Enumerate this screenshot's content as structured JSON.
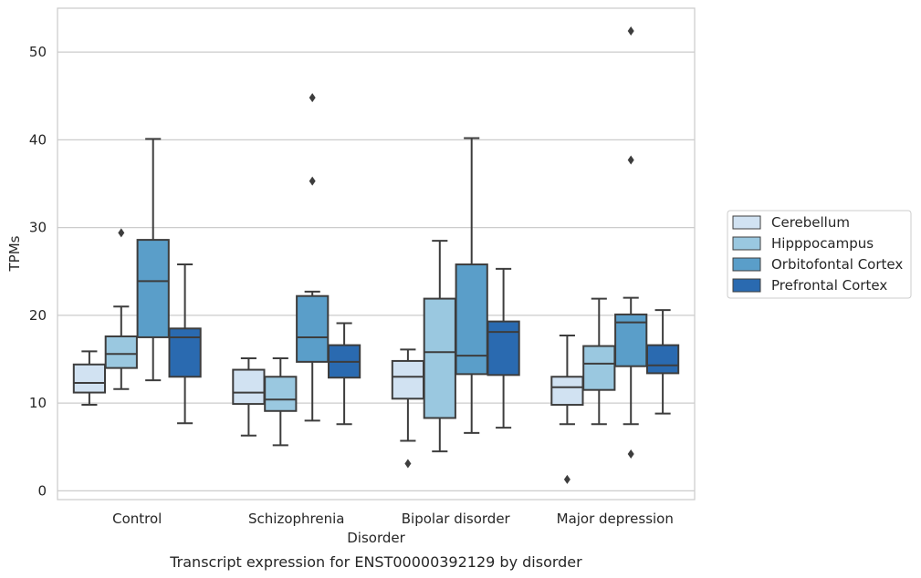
{
  "chart_data": {
    "type": "box",
    "title": "",
    "caption": "Transcript expression for ENST00000392129 by disorder",
    "xlabel": "Disorder",
    "ylabel": "TPMs",
    "ylim": [
      -1,
      55
    ],
    "yticks": [
      0,
      10,
      20,
      30,
      40,
      50
    ],
    "grid": "horizontal",
    "legend_position": "right",
    "categories": [
      "Control",
      "Schizophrenia",
      "Bipolar disorder",
      "Major depression"
    ],
    "series": [
      {
        "name": "Cerebellum",
        "color": "#d1e2f2",
        "boxes": [
          {
            "whisker_low": 9.8,
            "q1": 11.2,
            "median": 12.3,
            "q3": 14.4,
            "whisker_high": 15.9,
            "outliers": []
          },
          {
            "whisker_low": 6.3,
            "q1": 9.9,
            "median": 11.2,
            "q3": 13.8,
            "whisker_high": 15.1,
            "outliers": []
          },
          {
            "whisker_low": 5.7,
            "q1": 10.5,
            "median": 13.0,
            "q3": 14.8,
            "whisker_high": 16.1,
            "outliers": [
              3.1
            ]
          },
          {
            "whisker_low": 7.6,
            "q1": 9.8,
            "median": 11.8,
            "q3": 13.0,
            "whisker_high": 17.7,
            "outliers": [
              1.3
            ]
          }
        ]
      },
      {
        "name": "Hipppocampus",
        "color": "#9ac8e0",
        "boxes": [
          {
            "whisker_low": 11.6,
            "q1": 14.0,
            "median": 15.6,
            "q3": 17.6,
            "whisker_high": 21.0,
            "outliers": [
              29.4
            ]
          },
          {
            "whisker_low": 5.2,
            "q1": 9.1,
            "median": 10.4,
            "q3": 13.0,
            "whisker_high": 15.1,
            "outliers": []
          },
          {
            "whisker_low": 4.5,
            "q1": 8.3,
            "median": 15.8,
            "q3": 21.9,
            "whisker_high": 28.5,
            "outliers": []
          },
          {
            "whisker_low": 7.6,
            "q1": 11.5,
            "median": 14.5,
            "q3": 16.5,
            "whisker_high": 21.9,
            "outliers": []
          }
        ]
      },
      {
        "name": "Orbitofontal Cortex",
        "color": "#5a9ec9",
        "boxes": [
          {
            "whisker_low": 12.6,
            "q1": 17.5,
            "median": 23.9,
            "q3": 28.6,
            "whisker_high": 40.1,
            "outliers": []
          },
          {
            "whisker_low": 8.0,
            "q1": 14.7,
            "median": 17.5,
            "q3": 22.2,
            "whisker_high": 22.7,
            "outliers": [
              44.8,
              35.3
            ]
          },
          {
            "whisker_low": 6.6,
            "q1": 13.3,
            "median": 15.4,
            "q3": 25.8,
            "whisker_high": 40.2,
            "outliers": []
          },
          {
            "whisker_low": 7.6,
            "q1": 14.2,
            "median": 19.2,
            "q3": 20.1,
            "whisker_high": 22.0,
            "outliers": [
              52.4,
              37.7,
              4.2
            ]
          }
        ]
      },
      {
        "name": "Prefrontal Cortex",
        "color": "#2a6ab0",
        "boxes": [
          {
            "whisker_low": 7.7,
            "q1": 13.0,
            "median": 17.5,
            "q3": 18.5,
            "whisker_high": 25.8,
            "outliers": []
          },
          {
            "whisker_low": 7.6,
            "q1": 12.9,
            "median": 14.7,
            "q3": 16.6,
            "whisker_high": 19.1,
            "outliers": []
          },
          {
            "whisker_low": 7.2,
            "q1": 13.2,
            "median": 18.1,
            "q3": 19.3,
            "whisker_high": 25.3,
            "outliers": []
          },
          {
            "whisker_low": 8.8,
            "q1": 13.4,
            "median": 14.3,
            "q3": 16.6,
            "whisker_high": 20.6,
            "outliers": []
          }
        ]
      }
    ]
  }
}
